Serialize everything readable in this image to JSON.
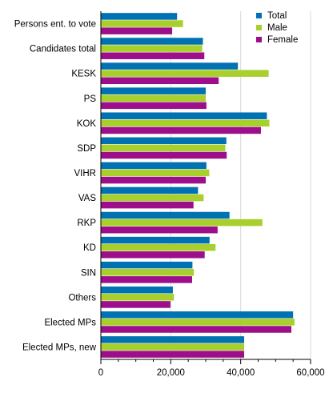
{
  "chart_data": {
    "type": "bar",
    "orientation": "horizontal",
    "categories": [
      "Persons ent. to vote",
      "Candidates total",
      "KESK",
      "PS",
      "KOK",
      "SDP",
      "VIHR",
      "VAS",
      "RKP",
      "KD",
      "SIN",
      "Others",
      "Elected MPs",
      "Elected MPs, new"
    ],
    "series": [
      {
        "name": "Total",
        "color": "#0072b2",
        "values": [
          21800,
          29200,
          39200,
          30000,
          47500,
          35900,
          30200,
          27800,
          36800,
          31100,
          26200,
          20600,
          55000,
          41000
        ]
      },
      {
        "name": "Male",
        "color": "#a8cf2b",
        "values": [
          23500,
          29000,
          48000,
          30000,
          48200,
          35600,
          31000,
          29400,
          46200,
          32800,
          26600,
          20900,
          55400,
          41000
        ]
      },
      {
        "name": "Female",
        "color": "#9c0e8a",
        "values": [
          20400,
          29600,
          33700,
          30200,
          45800,
          36000,
          30000,
          26500,
          33400,
          29700,
          26100,
          19900,
          54500,
          41000
        ]
      }
    ],
    "xlim": [
      0,
      60000
    ],
    "x_ticks": [
      0,
      20000,
      40000,
      60000
    ],
    "x_tick_labels": [
      "0",
      "20,000",
      "40,000",
      "60,000"
    ],
    "title": "",
    "xlabel": "",
    "ylabel": "",
    "grid": "vertical",
    "legend_position": "top-right"
  }
}
